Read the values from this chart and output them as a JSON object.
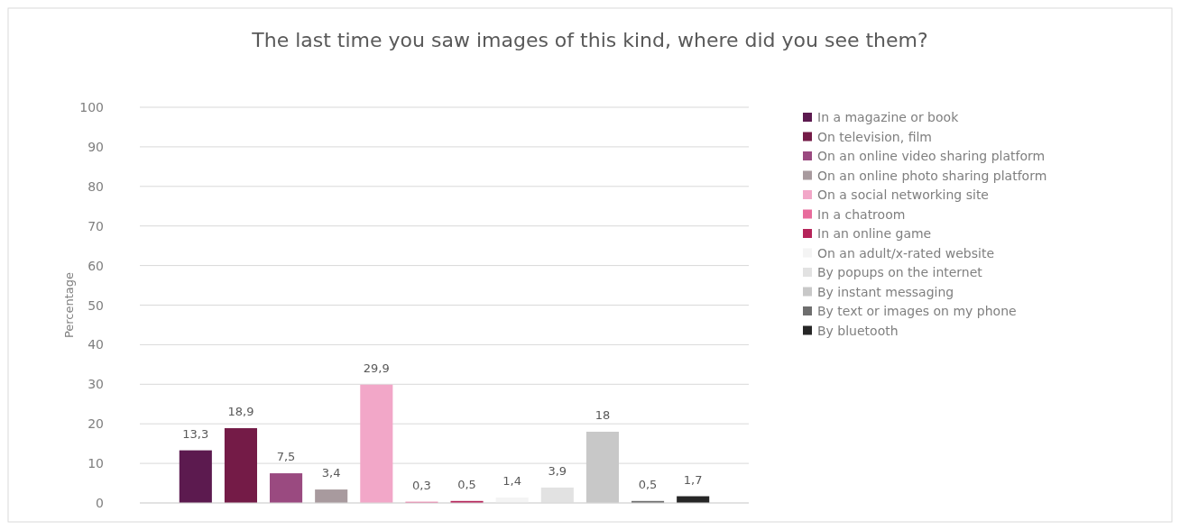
{
  "chart_data": {
    "type": "bar",
    "title": "The last time you saw images of this kind, where did you see them?",
    "ylabel": "Percentage",
    "categories": [
      null
    ],
    "ylim": [
      0,
      100
    ],
    "yticks": [
      0,
      10,
      20,
      30,
      40,
      50,
      60,
      70,
      80,
      90,
      100
    ],
    "grid": "y",
    "legend": "right",
    "series": [
      {
        "name": "In a magazine or book",
        "color": "#5c1a4f",
        "values": [
          13.3
        ],
        "value_labels": [
          "13,3"
        ]
      },
      {
        "name": "On television, film",
        "color": "#741b47",
        "values": [
          18.9
        ],
        "value_labels": [
          "18,9"
        ]
      },
      {
        "name": "On an online video sharing platform",
        "color": "#9a4a80",
        "values": [
          7.5
        ],
        "value_labels": [
          "7,5"
        ]
      },
      {
        "name": "On an online photo sharing platform",
        "color": "#a89a9e",
        "values": [
          3.4
        ],
        "value_labels": [
          "3,4"
        ]
      },
      {
        "name": "On a social networking site",
        "color": "#f2a7c8",
        "values": [
          29.9
        ],
        "value_labels": [
          "29,9"
        ]
      },
      {
        "name": "In a chatroom",
        "color": "#e86b9c",
        "values": [
          0.3
        ],
        "value_labels": [
          "0,3"
        ]
      },
      {
        "name": "In an online game",
        "color": "#b5245a",
        "values": [
          0.5
        ],
        "value_labels": [
          "0,5"
        ]
      },
      {
        "name": "On an adult/x-rated website",
        "color": "#f4f4f4",
        "values": [
          1.4
        ],
        "value_labels": [
          "1,4"
        ]
      },
      {
        "name": "By popups on the internet",
        "color": "#e2e2e2",
        "values": [
          3.9
        ],
        "value_labels": [
          "3,9"
        ]
      },
      {
        "name": "By instant messaging",
        "color": "#c8c8c8",
        "values": [
          18
        ],
        "value_labels": [
          "18"
        ]
      },
      {
        "name": "By text or images on my phone",
        "color": "#6e6e6e",
        "values": [
          0.5
        ],
        "value_labels": [
          "0,5"
        ]
      },
      {
        "name": "By bluetooth",
        "color": "#262626",
        "values": [
          1.7
        ],
        "value_labels": [
          "1,7"
        ]
      }
    ]
  }
}
